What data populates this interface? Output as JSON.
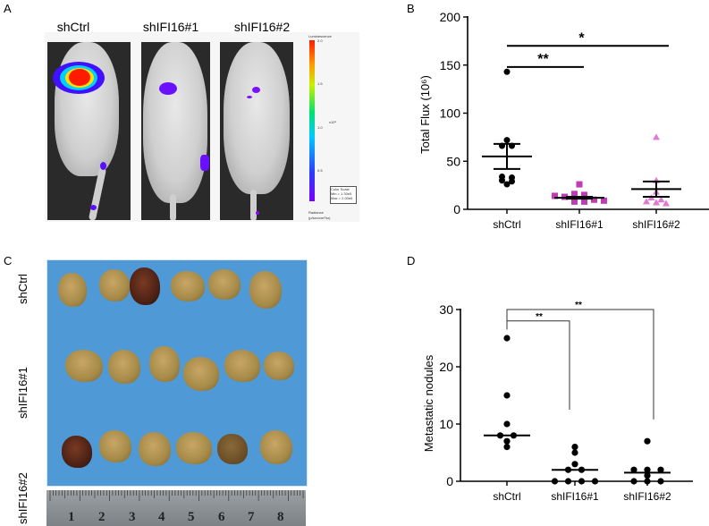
{
  "panels": {
    "A": {
      "label": "A",
      "groups": [
        "shCtrl",
        "shIFI16#1",
        "shIFI16#2"
      ],
      "colorbar": {
        "title": "Luminescence",
        "ticks": [
          "2.0",
          "1.5",
          "1.0",
          "0.5"
        ],
        "unit": "x10⁶",
        "scale_box": [
          "Color Scale",
          "Min = 1.30e5",
          "Max = 2.00e6"
        ],
        "footer": [
          "Radiance",
          "(p/sec/cm²/sr)"
        ]
      }
    },
    "C": {
      "label": "C",
      "row_labels": [
        "shCtrl",
        "shIFI16#1",
        "shIFI16#2"
      ],
      "ruler_numbers": [
        "1",
        "2",
        "3",
        "4",
        "5",
        "6",
        "7",
        "8"
      ]
    }
  },
  "chart_data": [
    {
      "panel": "B",
      "type": "scatter",
      "title": "",
      "xlabel": "",
      "ylabel": "Total Flux (10⁶)",
      "categories": [
        "shCtrl",
        "shIFI16#1",
        "shIFI16#2"
      ],
      "ylim": [
        0,
        200
      ],
      "yticks": [
        0,
        50,
        100,
        150,
        200
      ],
      "series": [
        {
          "name": "shCtrl",
          "marker": "circle",
          "color": "#000000",
          "values": [
            143,
            72,
            66,
            66,
            34,
            33,
            30,
            29,
            26
          ],
          "mean": 55,
          "sem": [
            42,
            68
          ]
        },
        {
          "name": "shIFI16#1",
          "marker": "square",
          "color": "#c03cb4",
          "values": [
            26,
            16,
            15,
            14,
            13,
            12,
            11,
            10,
            9,
            8,
            8
          ],
          "mean": 12,
          "sem": [
            11,
            13
          ]
        },
        {
          "name": "shIFI16#2",
          "marker": "triangle",
          "color": "#e07ad2",
          "values": [
            75,
            30,
            18,
            12,
            10,
            8,
            7,
            6
          ],
          "mean": 21,
          "sem": [
            13,
            29
          ]
        }
      ],
      "annotations": [
        {
          "from": "shCtrl",
          "to": "shIFI16#1",
          "label": "**",
          "y": 148
        },
        {
          "from": "shCtrl",
          "to": "shIFI16#2",
          "label": "*",
          "y": 170
        }
      ]
    },
    {
      "panel": "D",
      "type": "scatter",
      "title": "",
      "xlabel": "",
      "ylabel": "Metastatic nodules",
      "categories": [
        "shCtrl",
        "shIFI16#1",
        "shIFI16#2"
      ],
      "ylim": [
        0,
        30
      ],
      "yticks": [
        0,
        10,
        20,
        30
      ],
      "series": [
        {
          "name": "shCtrl",
          "marker": "circle",
          "color": "#000000",
          "values": [
            25,
            15,
            10,
            8,
            8,
            7,
            6
          ],
          "median": 8
        },
        {
          "name": "shIFI16#1",
          "marker": "circle",
          "color": "#000000",
          "values": [
            6,
            5,
            3,
            2,
            2,
            0,
            0,
            0,
            0
          ],
          "median": 2
        },
        {
          "name": "shIFI16#2",
          "marker": "circle",
          "color": "#000000",
          "values": [
            7,
            2,
            2,
            2,
            1,
            0,
            0,
            0
          ],
          "median": 1.5
        }
      ],
      "annotations": [
        {
          "from": "shCtrl",
          "to": "shIFI16#1",
          "label": "**",
          "y": 28
        },
        {
          "from": "shCtrl",
          "to": "shIFI16#2",
          "label": "**",
          "y": 30
        }
      ]
    }
  ]
}
